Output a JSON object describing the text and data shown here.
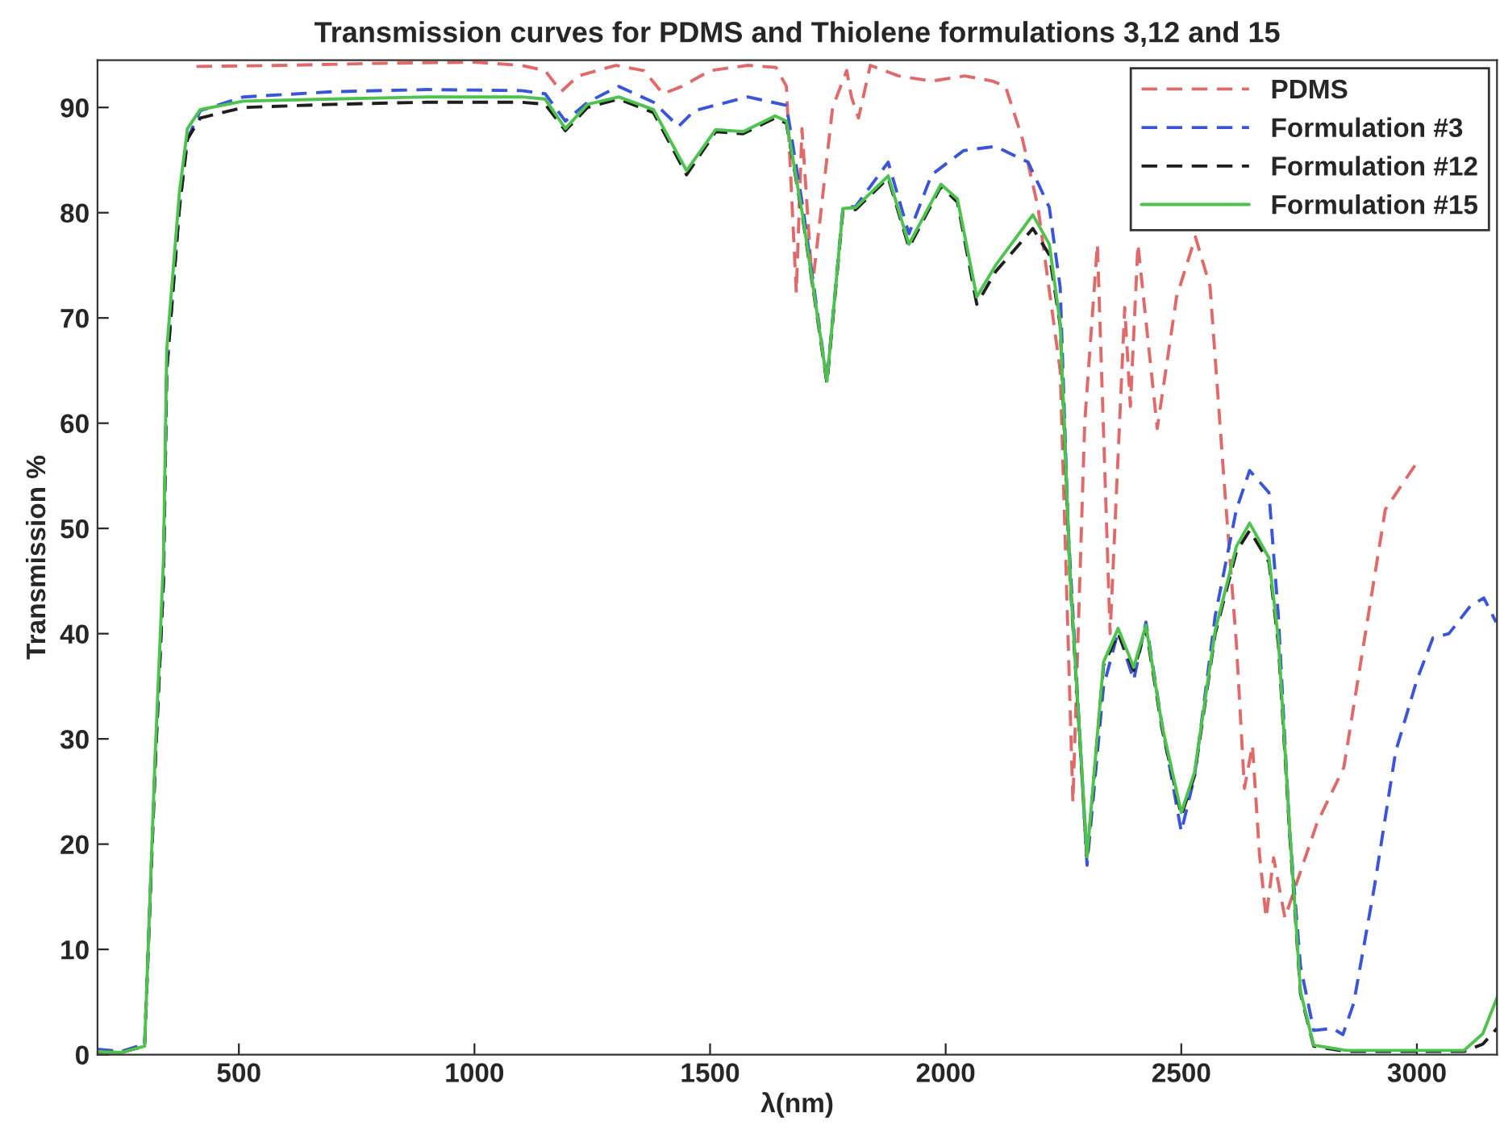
{
  "chart_data": {
    "type": "line",
    "title": "Transmission curves for PDMS and Thiolene formulations 3,12 and 15",
    "xlabel": "λ(nm)",
    "ylabel": "Transmission %",
    "xlim": [
      200,
      3170
    ],
    "ylim": [
      0,
      94.5
    ],
    "xticks": [
      500,
      1000,
      1500,
      2000,
      2500,
      3000
    ],
    "yticks": [
      0,
      10,
      20,
      30,
      40,
      50,
      60,
      70,
      80,
      90
    ],
    "grid": false,
    "legend": "top right",
    "series": [
      {
        "name": "PDMS",
        "color": "#e06a6a",
        "line_style": "dashed",
        "x": [
          410,
          600,
          800,
          1000,
          1100,
          1150,
          1184,
          1220,
          1300,
          1360,
          1400,
          1440,
          1500,
          1580,
          1640,
          1662,
          1683,
          1695,
          1717,
          1735,
          1760,
          1790,
          1800,
          1815,
          1840,
          1900,
          1970,
          2040,
          2100,
          2127,
          2163,
          2196,
          2243,
          2270,
          2295,
          2322,
          2349,
          2380,
          2392,
          2408,
          2449,
          2490,
          2530,
          2561,
          2590,
          2617,
          2634,
          2651,
          2666,
          2680,
          2696,
          2720,
          2747,
          2788,
          2845,
          2900,
          2933,
          2996
        ],
        "values": [
          93.9,
          94,
          94.2,
          94.3,
          94,
          93.5,
          91.5,
          93,
          94,
          93.5,
          91.3,
          92,
          93.5,
          94,
          93.8,
          92,
          72.4,
          88,
          73,
          80,
          90,
          93.5,
          91,
          89,
          94,
          93,
          92.5,
          93,
          92.5,
          92,
          87,
          80.5,
          65,
          24,
          60,
          77,
          40,
          71,
          61.6,
          77,
          59.5,
          72,
          77.7,
          73,
          55,
          39,
          25.3,
          29.4,
          19,
          13,
          18.7,
          13,
          16.6,
          22,
          27.3,
          42.6,
          51.8,
          56
        ]
      },
      {
        "name": "Formulation #3",
        "color": "#3a55d8",
        "line_style": "dashed",
        "x": [
          200,
          250,
          300,
          322,
          340,
          347,
          374,
          391,
          418,
          510,
          700,
          900,
          1100,
          1150,
          1193,
          1240,
          1306,
          1380,
          1433,
          1467,
          1580,
          1662,
          1697,
          1748,
          1782,
          1809,
          1878,
          1922,
          1970,
          2038,
          2106,
          2175,
          2220,
          2243,
          2260,
          2300,
          2335,
          2366,
          2399,
          2425,
          2459,
          2500,
          2528,
          2572,
          2617,
          2645,
          2686,
          2706,
          2730,
          2753,
          2781,
          2821,
          2843,
          2866,
          2910,
          2955,
          3000,
          3034,
          3068,
          3113,
          3142,
          3168
        ],
        "values": [
          0.5,
          0.3,
          1,
          27,
          45,
          65,
          80.5,
          87,
          89.7,
          91,
          91.5,
          91.7,
          91.6,
          91.3,
          88.7,
          90.5,
          92,
          90.5,
          88.2,
          89.7,
          91,
          90.2,
          80.5,
          64,
          80.5,
          80.6,
          84.8,
          78,
          83.6,
          85.9,
          86.3,
          84.8,
          80.5,
          72.9,
          50,
          18,
          35,
          40.2,
          35.6,
          41.1,
          31.4,
          21.2,
          26.4,
          41.7,
          51.8,
          55.5,
          53.4,
          41.7,
          21.2,
          8.4,
          2.3,
          2.5,
          1.9,
          4.9,
          16,
          28.8,
          35.6,
          39.6,
          40,
          42.6,
          43.4,
          41.1
        ]
      },
      {
        "name": "Formulation #12",
        "color": "#1e1e1e",
        "line_style": "dashed",
        "x": [
          200,
          250,
          300,
          322,
          340,
          347,
          374,
          391,
          418,
          510,
          700,
          900,
          1100,
          1150,
          1193,
          1240,
          1306,
          1380,
          1450,
          1512,
          1570,
          1638,
          1662,
          1697,
          1748,
          1782,
          1809,
          1878,
          1922,
          1990,
          2025,
          2066,
          2106,
          2185,
          2220,
          2243,
          2264,
          2300,
          2335,
          2366,
          2399,
          2425,
          2459,
          2500,
          2528,
          2572,
          2617,
          2645,
          2686,
          2706,
          2730,
          2753,
          2781,
          2850,
          3000,
          3100,
          3140,
          3170
        ],
        "values": [
          0.3,
          0.2,
          0.8,
          27,
          45,
          65,
          80.5,
          87,
          89,
          90,
          90.3,
          90.5,
          90.5,
          90.3,
          87.8,
          90,
          90.8,
          89.5,
          83.6,
          87.7,
          87.5,
          89,
          88.5,
          79.4,
          63.8,
          80.2,
          80.3,
          83.3,
          76.7,
          82.5,
          81,
          71.3,
          74.4,
          78.5,
          76,
          69.3,
          45.2,
          18.5,
          37,
          40,
          36.5,
          40.5,
          31,
          22.7,
          26.5,
          40,
          47.8,
          49.8,
          46.8,
          39,
          21,
          5.8,
          0.8,
          0.3,
          0.3,
          0.3,
          1,
          2.5
        ]
      },
      {
        "name": "Formulation #15",
        "color": "#4ec24e",
        "line_style": "solid",
        "x": [
          200,
          250,
          300,
          322,
          340,
          347,
          374,
          391,
          418,
          510,
          700,
          900,
          1100,
          1150,
          1193,
          1240,
          1306,
          1380,
          1450,
          1512,
          1570,
          1638,
          1662,
          1697,
          1748,
          1782,
          1809,
          1878,
          1922,
          1990,
          2025,
          2066,
          2106,
          2185,
          2220,
          2243,
          2264,
          2300,
          2335,
          2366,
          2399,
          2425,
          2459,
          2500,
          2528,
          2572,
          2617,
          2645,
          2686,
          2706,
          2730,
          2753,
          2781,
          2850,
          3000,
          3100,
          3140,
          3170
        ],
        "values": [
          0.3,
          0.2,
          0.8,
          28,
          47,
          67,
          82,
          88,
          89.8,
          90.6,
          90.8,
          91,
          91,
          90.8,
          88,
          90.3,
          91,
          89.8,
          84,
          87.9,
          87.7,
          89.2,
          88.7,
          79.6,
          64,
          80.4,
          80.5,
          83.5,
          77,
          82.7,
          81.3,
          72,
          75,
          79.8,
          77,
          69.5,
          45.5,
          18.8,
          37.3,
          40.5,
          36.8,
          40.8,
          31.3,
          23,
          26.8,
          40.3,
          48.3,
          50.5,
          47.2,
          39.5,
          21.5,
          6,
          0.9,
          0.4,
          0.4,
          0.4,
          2,
          5.4
        ]
      }
    ]
  }
}
